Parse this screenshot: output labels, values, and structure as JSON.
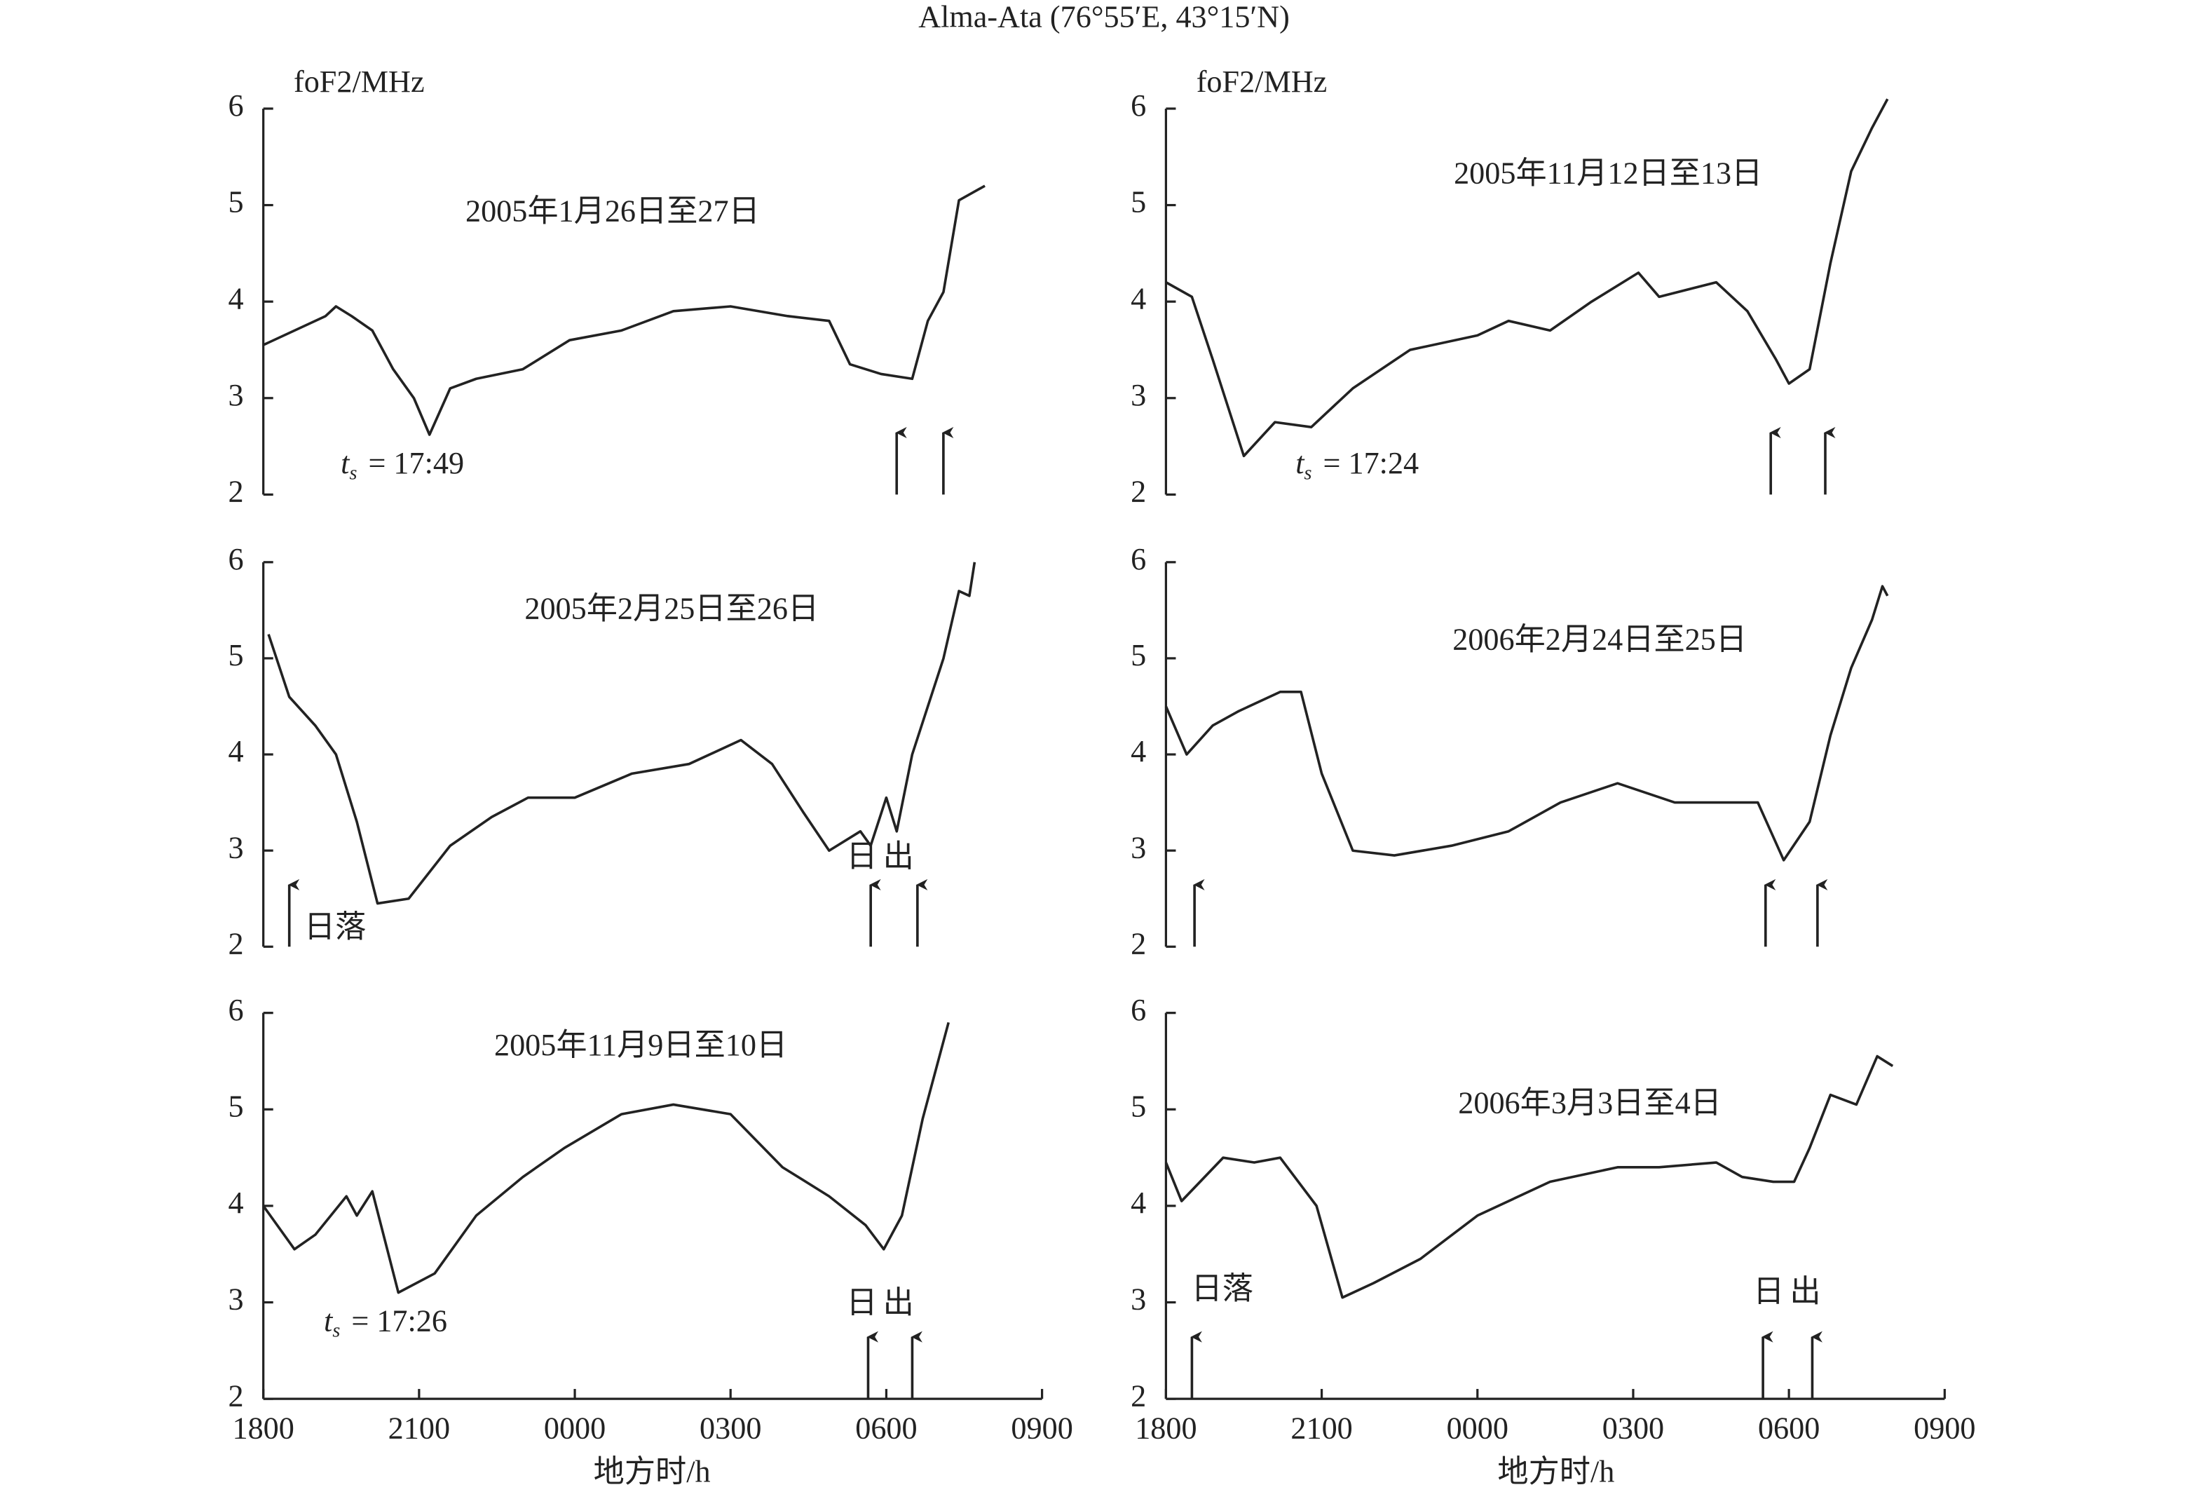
{
  "title": "Alma-Ata (76°55′E, 43°15′N)",
  "chart_data": [
    {
      "type": "line",
      "ylabel": "foF2/MHz",
      "annotation": "2005年1月26日至27日",
      "color": "#222222",
      "x": [
        18.0,
        19.2,
        19.4,
        19.7,
        20.1,
        20.5,
        20.9,
        21.2,
        21.6,
        22.1,
        23.0,
        23.9,
        24.9,
        25.9,
        27.0,
        28.1,
        28.9,
        29.3,
        29.9,
        30.5,
        30.8,
        31.1,
        31.4,
        31.9
      ],
      "values": [
        3.55,
        3.85,
        3.95,
        3.85,
        3.7,
        3.3,
        3.0,
        2.62,
        3.1,
        3.2,
        3.3,
        3.6,
        3.7,
        3.9,
        3.95,
        3.85,
        3.8,
        3.35,
        3.25,
        3.2,
        3.8,
        4.1,
        5.05,
        5.2
      ],
      "xlim": [
        18,
        33
      ],
      "ylim": [
        2,
        6
      ],
      "yticks": [
        2,
        3,
        4,
        5,
        6
      ],
      "ts_symbol": "t",
      "ts_subscript": "s",
      "ts_text": "= 17:49",
      "sunrise": [
        30.2,
        31.1
      ]
    },
    {
      "type": "line",
      "annotation": "2005年2月25日至26日",
      "color": "#222222",
      "x": [
        18.1,
        18.5,
        19.0,
        19.4,
        19.8,
        20.2,
        20.8,
        21.6,
        22.4,
        23.1,
        24.0,
        25.1,
        26.2,
        27.2,
        27.8,
        28.4,
        28.9,
        29.5,
        29.7,
        30.0,
        30.2,
        30.5,
        31.1,
        31.4,
        31.6,
        31.7
      ],
      "values": [
        5.25,
        4.6,
        4.3,
        4.0,
        3.3,
        2.45,
        2.5,
        3.05,
        3.35,
        3.55,
        3.55,
        3.8,
        3.9,
        4.15,
        3.9,
        3.4,
        3.0,
        3.2,
        3.05,
        3.55,
        3.2,
        4.0,
        5.0,
        5.7,
        5.65,
        6.0
      ],
      "xlim": [
        18,
        33
      ],
      "ylim": [
        2,
        6
      ],
      "yticks": [
        2,
        3,
        4,
        5,
        6
      ],
      "sunset": 18.5,
      "sunset_label": "日落",
      "sunrise": [
        29.7,
        30.6
      ],
      "sunrise_label": "日出"
    },
    {
      "type": "line",
      "annotation": "2005年11月9日至10日",
      "color": "#222222",
      "x": [
        18.0,
        18.6,
        19.0,
        19.6,
        19.8,
        20.1,
        20.6,
        21.3,
        22.1,
        23.0,
        23.8,
        24.9,
        25.9,
        27.0,
        28.0,
        28.9,
        29.6,
        29.95,
        30.3,
        30.7,
        31.2
      ],
      "values": [
        4.0,
        3.55,
        3.7,
        4.1,
        3.9,
        4.15,
        3.1,
        3.3,
        3.9,
        4.3,
        4.6,
        4.95,
        5.05,
        4.95,
        4.4,
        4.1,
        3.8,
        3.55,
        3.9,
        4.9,
        5.9
      ],
      "xlim": [
        18,
        33
      ],
      "ylim": [
        2,
        6
      ],
      "yticks": [
        2,
        3,
        4,
        5,
        6
      ],
      "xticks": [
        {
          "value": 18,
          "label": "1800"
        },
        {
          "value": 21,
          "label": "2100"
        },
        {
          "value": 24,
          "label": "0000"
        },
        {
          "value": 27,
          "label": "0300"
        },
        {
          "value": 30,
          "label": "0600"
        },
        {
          "value": 33,
          "label": "0900"
        }
      ],
      "xlabel": "地方时/h",
      "ts_symbol": "t",
      "ts_subscript": "s",
      "ts_text": "= 17:26",
      "sunrise": [
        29.65,
        30.5
      ],
      "sunrise_label": "日出"
    },
    {
      "type": "line",
      "ylabel": "foF2/MHz",
      "annotation": "2005年11月12日至13日",
      "color": "#222222",
      "x": [
        18.0,
        18.5,
        18.9,
        19.5,
        20.1,
        20.8,
        21.6,
        22.7,
        24.0,
        24.6,
        25.4,
        26.2,
        27.1,
        27.5,
        28.6,
        29.2,
        29.75,
        30.0,
        30.4,
        30.8,
        31.2,
        31.6,
        31.9
      ],
      "values": [
        4.2,
        4.05,
        3.4,
        2.4,
        2.75,
        2.7,
        3.1,
        3.5,
        3.65,
        3.8,
        3.7,
        4.0,
        4.3,
        4.05,
        4.2,
        3.9,
        3.4,
        3.15,
        3.3,
        4.4,
        5.35,
        5.8,
        6.1
      ],
      "xlim": [
        18,
        33
      ],
      "ylim": [
        2,
        6
      ],
      "yticks": [
        2,
        3,
        4,
        5,
        6
      ],
      "ts_symbol": "t",
      "ts_subscript": "s",
      "ts_text": "= 17:24",
      "sunrise": [
        29.65,
        30.7
      ]
    },
    {
      "type": "line",
      "annotation": "2006年2月24日至25日",
      "color": "#222222",
      "x": [
        18.0,
        18.4,
        18.9,
        19.4,
        20.2,
        20.6,
        21.0,
        21.6,
        22.4,
        23.5,
        24.6,
        25.6,
        26.7,
        27.8,
        29.4,
        29.9,
        30.4,
        30.8,
        31.2,
        31.6,
        31.8,
        31.9
      ],
      "values": [
        4.5,
        4.0,
        4.3,
        4.45,
        4.65,
        4.65,
        3.8,
        3.0,
        2.95,
        3.05,
        3.2,
        3.5,
        3.7,
        3.5,
        3.5,
        2.9,
        3.3,
        4.2,
        4.9,
        5.4,
        5.75,
        5.65
      ],
      "xlim": [
        18,
        33
      ],
      "ylim": [
        2,
        6
      ],
      "yticks": [
        2,
        3,
        4,
        5,
        6
      ],
      "sunset": 18.55,
      "sunrise": [
        29.55,
        30.55
      ]
    },
    {
      "type": "line",
      "annotation": "2006年3月3日至4日",
      "color": "#222222",
      "x": [
        18.0,
        18.3,
        19.1,
        19.7,
        20.2,
        20.9,
        21.4,
        22.0,
        22.9,
        24.0,
        25.4,
        26.7,
        27.5,
        28.6,
        29.1,
        29.7,
        30.1,
        30.4,
        30.8,
        31.3,
        31.7,
        32.0
      ],
      "values": [
        4.45,
        4.05,
        4.5,
        4.45,
        4.5,
        4.0,
        3.05,
        3.2,
        3.45,
        3.9,
        4.25,
        4.4,
        4.4,
        4.45,
        4.3,
        4.25,
        4.25,
        4.6,
        5.15,
        5.05,
        5.55,
        5.45
      ],
      "xlim": [
        18,
        33
      ],
      "ylim": [
        2,
        6
      ],
      "yticks": [
        2,
        3,
        4,
        5,
        6
      ],
      "xticks": [
        {
          "value": 18,
          "label": "1800"
        },
        {
          "value": 21,
          "label": "2100"
        },
        {
          "value": 24,
          "label": "0000"
        },
        {
          "value": 27,
          "label": "0300"
        },
        {
          "value": 30,
          "label": "0600"
        },
        {
          "value": 33,
          "label": "0900"
        }
      ],
      "xlabel": "地方时/h",
      "sunset": 18.5,
      "sunset_label": "日落",
      "sunrise": [
        29.5,
        30.45
      ],
      "sunrise_label": "日出"
    }
  ]
}
